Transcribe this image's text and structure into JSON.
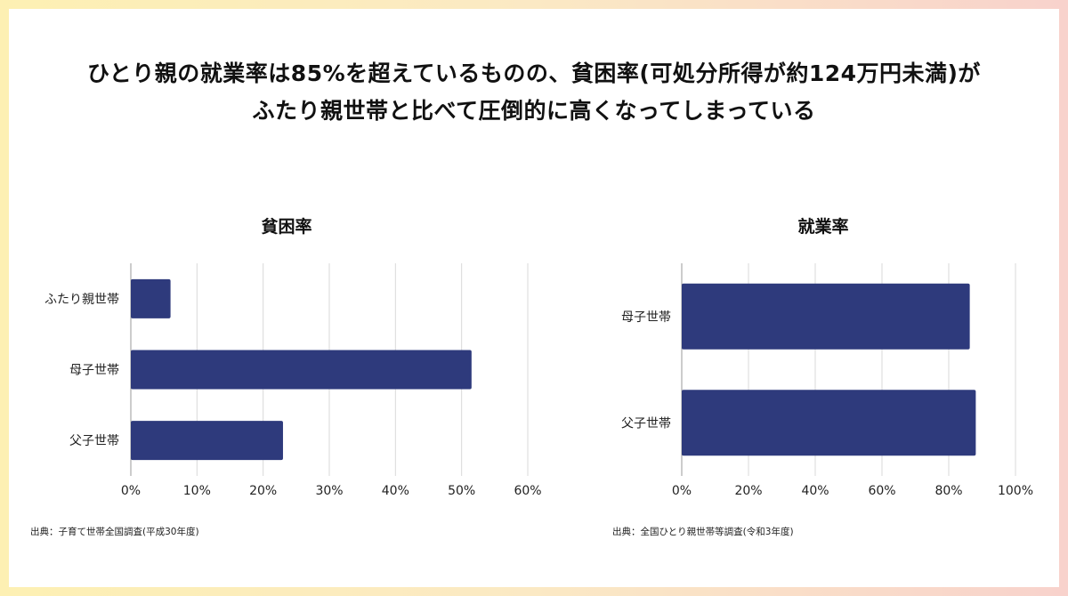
{
  "headline": {
    "line1": "ひとり親の就業率は85%を超えているものの、貧困率(可処分所得が約124万円未満)が",
    "line2": "ふたり親世帯と比べて圧倒的に高くなってしまっている"
  },
  "colors": {
    "bar": "#2e3a7c",
    "grid": "#d9d9d9",
    "axis": "#999999"
  },
  "chart_data": [
    {
      "type": "bar",
      "orientation": "horizontal",
      "title": "貧困率",
      "categories": [
        "ふたり親世帯",
        "母子世帯",
        "父子世帯"
      ],
      "values": [
        6,
        51.5,
        23
      ],
      "xlim": [
        0,
        60
      ],
      "ticks": [
        "0%",
        "10%",
        "20%",
        "30%",
        "40%",
        "50%",
        "60%"
      ],
      "source": "出典：子育て世帯全国調査(平成30年度)"
    },
    {
      "type": "bar",
      "orientation": "horizontal",
      "title": "就業率",
      "categories": [
        "母子世帯",
        "父子世帯"
      ],
      "values": [
        86.3,
        88.1
      ],
      "xlim": [
        0,
        100
      ],
      "ticks": [
        "0%",
        "20%",
        "40%",
        "60%",
        "80%",
        "100%"
      ],
      "source": "出典：全国ひとり親世帯等調査(令和3年度)"
    }
  ]
}
